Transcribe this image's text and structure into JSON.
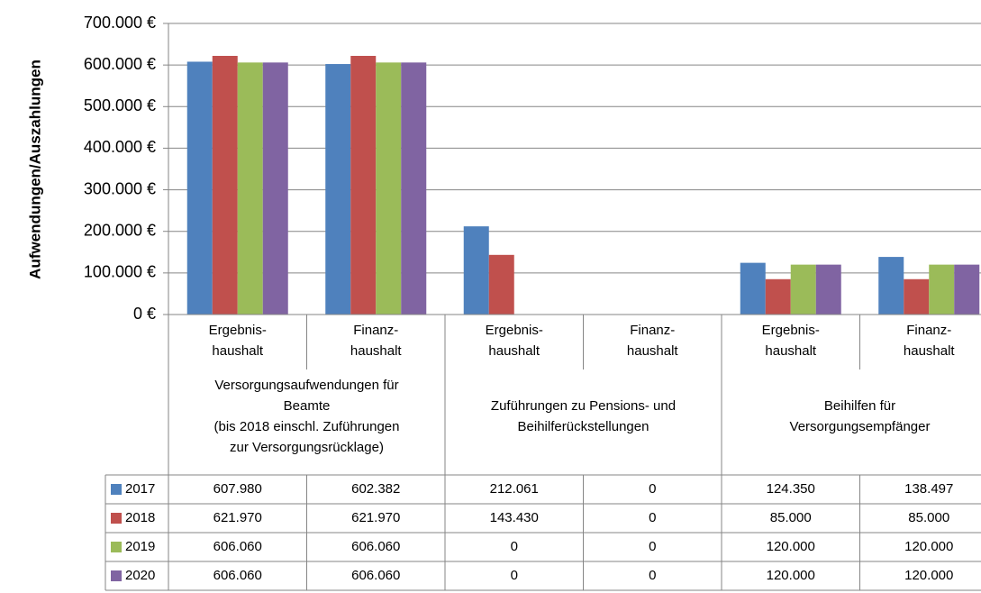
{
  "chart_data": {
    "type": "bar",
    "y_axis_title": "Aufwendungen/Auszahlungen",
    "categories": [
      [
        "Ergebnis-",
        "haushalt"
      ],
      [
        "Finanz-",
        "haushalt"
      ],
      [
        "Ergebnis-",
        "haushalt"
      ],
      [
        "Finanz-",
        "haushalt"
      ],
      [
        "Ergebnis-",
        "haushalt"
      ],
      [
        "Finanz-",
        "haushalt"
      ]
    ],
    "groups": [
      [
        "Versorgungsaufwendungen für",
        "Beamte",
        "(bis 2018 einschl. Zuführungen",
        "zur Versorgungsrücklage)"
      ],
      [
        "Zuführungen zu Pensions- und",
        "Beihilferückstellungen"
      ],
      [
        "Beihilfen für",
        "Versorgungsempfänger"
      ]
    ],
    "series": [
      {
        "name": "2017",
        "color": "#4f81bd",
        "values": [
          607980,
          602382,
          212061,
          0,
          124350,
          138497
        ],
        "value_labels": [
          "607.980",
          "602.382",
          "212.061",
          "0",
          "124.350",
          "138.497"
        ]
      },
      {
        "name": "2018",
        "color": "#c0504d",
        "values": [
          621970,
          621970,
          143430,
          0,
          85000,
          85000
        ],
        "value_labels": [
          "621.970",
          "621.970",
          "143.430",
          "0",
          "85.000",
          "85.000"
        ]
      },
      {
        "name": "2019",
        "color": "#9bbb59",
        "values": [
          606060,
          606060,
          0,
          0,
          120000,
          120000
        ],
        "value_labels": [
          "606.060",
          "606.060",
          "0",
          "0",
          "120.000",
          "120.000"
        ]
      },
      {
        "name": "2020",
        "color": "#8064a2",
        "values": [
          606060,
          606060,
          0,
          0,
          120000,
          120000
        ],
        "value_labels": [
          "606.060",
          "606.060",
          "0",
          "0",
          "120.000",
          "120.000"
        ]
      }
    ],
    "ylim": [
      0,
      700000
    ],
    "yticks": [
      {
        "value": 0,
        "label": "0 €"
      },
      {
        "value": 100000,
        "label": "100.000 €"
      },
      {
        "value": 200000,
        "label": "200.000 €"
      },
      {
        "value": 300000,
        "label": "300.000 €"
      },
      {
        "value": 400000,
        "label": "400.000 €"
      },
      {
        "value": 500000,
        "label": "500.000 €"
      },
      {
        "value": 600000,
        "label": "600.000 €"
      },
      {
        "value": 700000,
        "label": "700.000 €"
      }
    ],
    "grid": true
  }
}
